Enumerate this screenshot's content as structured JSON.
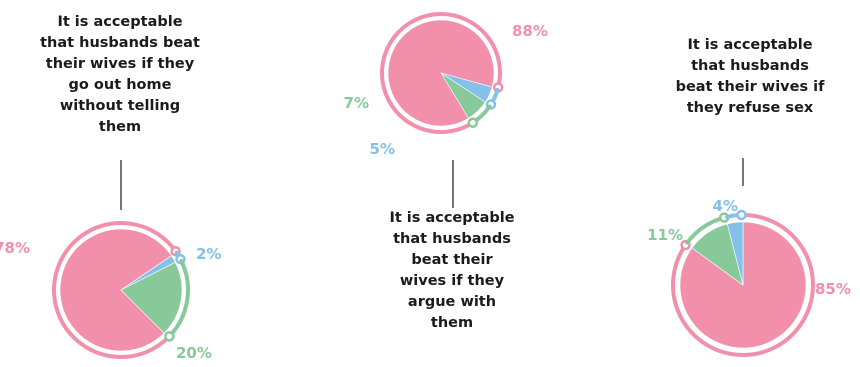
{
  "colors": {
    "pink": "#f28fab",
    "green": "#88c99a",
    "blue": "#85c0e8",
    "connector": "#1b1b1b"
  },
  "chart_data": [
    {
      "type": "pie",
      "title": "It is acceptable that husbands beat their wives if they go out home without telling them",
      "slices": [
        {
          "value": 78,
          "label": "78%",
          "color": "#f28fab"
        },
        {
          "value": 2,
          "label": "2%",
          "color": "#85c0e8"
        },
        {
          "value": 20,
          "label": "20%",
          "color": "#88c99a"
        }
      ]
    },
    {
      "type": "pie",
      "title": "It is acceptable that husbands beat their wives if they argue with them",
      "slices": [
        {
          "value": 88,
          "label": "88%",
          "color": "#f28fab"
        },
        {
          "value": 5,
          "label": "5%",
          "color": "#85c0e8"
        },
        {
          "value": 7,
          "label": "7%",
          "color": "#88c99a"
        }
      ]
    },
    {
      "type": "pie",
      "title": "It is acceptable that husbands beat their wives if they refuse sex",
      "slices": [
        {
          "value": 85,
          "label": "85%",
          "color": "#f28fab"
        },
        {
          "value": 11,
          "label": "11%",
          "color": "#88c99a"
        },
        {
          "value": 4,
          "label": "4%",
          "color": "#85c0e8"
        }
      ]
    }
  ],
  "titles": {
    "t1": [
      "It is acceptable",
      "that husbands beat",
      "their wives if they",
      "go out home",
      "without telling",
      "them"
    ],
    "t2": [
      "It is acceptable",
      "that husbands",
      "beat their",
      "wives if they",
      "argue with",
      "them"
    ],
    "t3": [
      "It is acceptable",
      "that husbands",
      "beat their wives if",
      "they refuse sex"
    ]
  }
}
